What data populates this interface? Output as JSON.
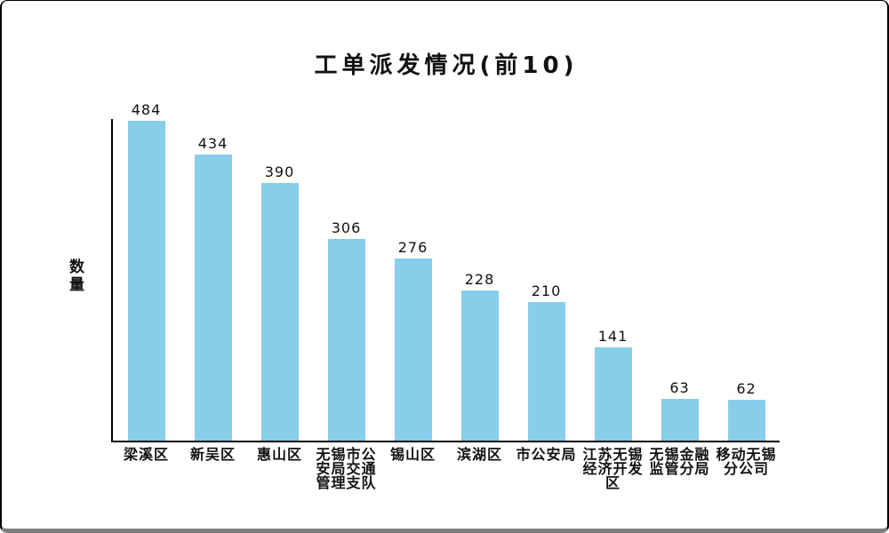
{
  "window": {
    "background": "#ffffff",
    "border_color": "#000000",
    "bottom_edge_color": "#7f7f7f"
  },
  "chart_data": {
    "type": "bar",
    "title": "工单派发情况(前10)",
    "xlabel": "",
    "ylabel": "数量",
    "categories": [
      "梁溪区",
      "新吴区",
      "惠山区",
      "无锡市公安局交通管理支队",
      "锡山区",
      "滨湖区",
      "市公安局",
      "江苏无锡经济开发区",
      "无锡金融监管分局",
      "移动无锡分公司"
    ],
    "values": [
      484,
      434,
      390,
      306,
      276,
      228,
      210,
      141,
      63,
      62
    ],
    "ylim": [
      0,
      490
    ],
    "grid": false,
    "legend": "none",
    "value_labels_shown": true,
    "bar_color": "#87CEEB",
    "axis_color": "#000000",
    "text_color": "#111111"
  }
}
